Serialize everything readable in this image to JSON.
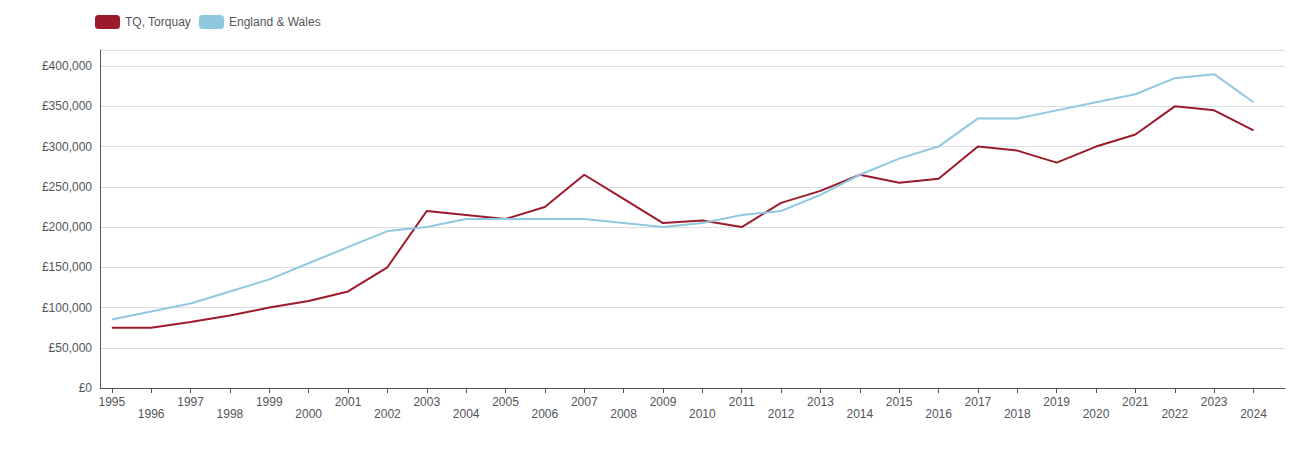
{
  "chart_data": {
    "type": "line",
    "x": [
      1995,
      1996,
      1997,
      1998,
      1999,
      2000,
      2001,
      2002,
      2003,
      2004,
      2005,
      2006,
      2007,
      2008,
      2009,
      2010,
      2011,
      2012,
      2013,
      2014,
      2015,
      2016,
      2017,
      2018,
      2019,
      2020,
      2021,
      2022,
      2023,
      2024
    ],
    "series": [
      {
        "name": "TQ, Torquay",
        "color": "#9B1B2A",
        "values": [
          75000,
          75000,
          82000,
          90000,
          100000,
          108000,
          120000,
          150000,
          220000,
          215000,
          210000,
          225000,
          265000,
          235000,
          205000,
          208000,
          200000,
          230000,
          245000,
          265000,
          255000,
          260000,
          300000,
          295000,
          280000,
          300000,
          315000,
          350000,
          345000,
          320000
        ]
      },
      {
        "name": "England & Wales",
        "color": "#90C8E0",
        "values": [
          85000,
          95000,
          105000,
          120000,
          135000,
          155000,
          175000,
          195000,
          200000,
          210000,
          210000,
          210000,
          210000,
          205000,
          200000,
          205000,
          215000,
          220000,
          240000,
          265000,
          285000,
          300000,
          335000,
          335000,
          345000,
          355000,
          365000,
          385000,
          390000,
          355000
        ]
      }
    ],
    "xlim": [
      1994.7,
      2024.8
    ],
    "xticks": [
      1995,
      1996,
      1997,
      1998,
      1999,
      2000,
      2001,
      2002,
      2003,
      2004,
      2005,
      2006,
      2007,
      2008,
      2009,
      2010,
      2011,
      2012,
      2013,
      2014,
      2015,
      2016,
      2017,
      2018,
      2019,
      2020,
      2021,
      2022,
      2023,
      2024
    ],
    "ylim": [
      0,
      420000
    ],
    "yticks": [
      {
        "value": 0,
        "label": "£0"
      },
      {
        "value": 50000,
        "label": "£50,000"
      },
      {
        "value": 100000,
        "label": "£100,000"
      },
      {
        "value": 150000,
        "label": "£150,000"
      },
      {
        "value": 200000,
        "label": "£200,000"
      },
      {
        "value": 250000,
        "label": "£250,000"
      },
      {
        "value": 300000,
        "label": "£300,000"
      },
      {
        "value": 350000,
        "label": "£350,000"
      },
      {
        "value": 400000,
        "label": "£400,000"
      }
    ],
    "grid": true,
    "legend": "upper left"
  }
}
